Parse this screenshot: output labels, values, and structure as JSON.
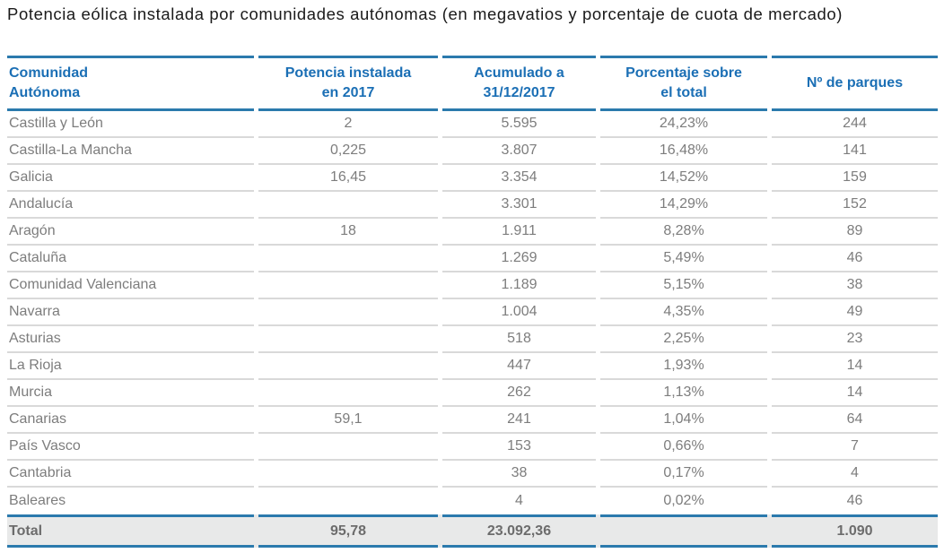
{
  "title": "Potencia eólica instalada por comunidades autónomas (en megavatios y porcentaje de cuota de mercado)",
  "colors": {
    "header_text_blue": "#1b6fb5",
    "rule_blue": "#2b7aad",
    "body_text_gray": "#7d7d7d",
    "row_separator_gray": "#d9d9d9",
    "total_row_background": "#e8e9e9",
    "total_text_gray": "#6c6c6c",
    "title_text": "#1a1a1a"
  },
  "display": {
    "header_lines": [
      [
        "Comunidad",
        "Autónoma"
      ],
      [
        "Potencia instalada",
        "en 2017"
      ],
      [
        "Acumulado a",
        "31/12/2017"
      ],
      [
        "Porcentaje sobre",
        "el total"
      ],
      [
        "Nº de parques",
        ""
      ]
    ]
  },
  "chart_data": {
    "type": "table",
    "title": "Potencia eólica instalada por comunidades autónomas (en megavatios y porcentaje de cuota de mercado)",
    "columns": [
      "Comunidad Autónoma",
      "Potencia instalada en 2017",
      "Acumulado a 31/12/2017",
      "Porcentaje sobre el total",
      "Nº de parques"
    ],
    "rows": [
      [
        "Castilla y León",
        "2",
        "5.595",
        "24,23%",
        "244"
      ],
      [
        "Castilla-La Mancha",
        "0,225",
        "3.807",
        "16,48%",
        "141"
      ],
      [
        "Galicia",
        "16,45",
        "3.354",
        "14,52%",
        "159"
      ],
      [
        "Andalucía",
        "",
        "3.301",
        "14,29%",
        "152"
      ],
      [
        "Aragón",
        "18",
        "1.911",
        "8,28%",
        "89"
      ],
      [
        "Cataluña",
        "",
        "1.269",
        "5,49%",
        "46"
      ],
      [
        "Comunidad Valenciana",
        "",
        "1.189",
        "5,15%",
        "38"
      ],
      [
        "Navarra",
        "",
        "1.004",
        "4,35%",
        "49"
      ],
      [
        "Asturias",
        "",
        "518",
        "2,25%",
        "23"
      ],
      [
        "La Rioja",
        "",
        "447",
        "1,93%",
        "14"
      ],
      [
        "Murcia",
        "",
        "262",
        "1,13%",
        "14"
      ],
      [
        "Canarias",
        "59,1",
        "241",
        "1,04%",
        "64"
      ],
      [
        "País Vasco",
        "",
        "153",
        "0,66%",
        "7"
      ],
      [
        "Cantabria",
        "",
        "38",
        "0,17%",
        "4"
      ],
      [
        "Baleares",
        "",
        "4",
        "0,02%",
        "46"
      ]
    ],
    "total": [
      "Total",
      "95,78",
      "23.092,36",
      "",
      "1.090"
    ]
  }
}
